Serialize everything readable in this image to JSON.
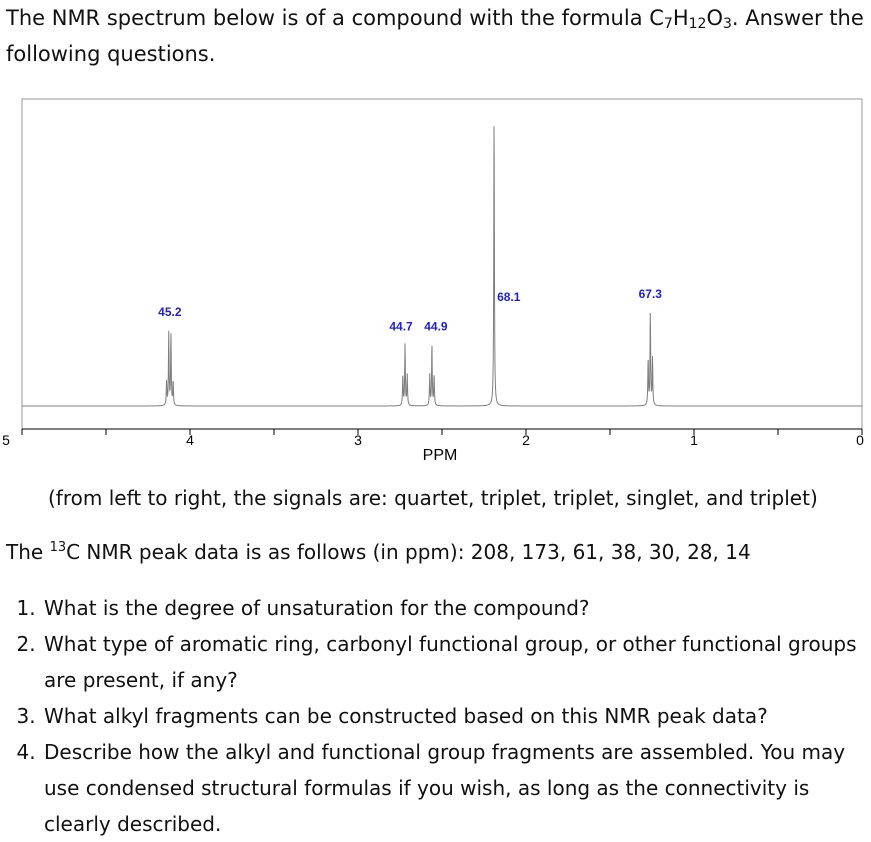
{
  "intro": {
    "text_before_formula": "The NMR spectrum below is of a compound with the formula ",
    "formula": [
      {
        "t": "C"
      },
      {
        "t": "7",
        "sub": true
      },
      {
        "t": "H"
      },
      {
        "t": "12",
        "sub": true
      },
      {
        "t": "O"
      },
      {
        "t": "3",
        "sub": true
      }
    ],
    "text_after_formula": ". Answer the following questions."
  },
  "chart_data": {
    "type": "line",
    "xlabel": "PPM",
    "xlim": [
      5,
      0
    ],
    "x_reversed": true,
    "ticks": [
      5,
      4,
      3,
      2,
      1,
      0
    ],
    "tick_labels": [
      "5",
      "4",
      "3",
      "2",
      "1",
      "0"
    ],
    "grid": false,
    "peaks": [
      {
        "center": 4.12,
        "label": "45.2",
        "height": 0.26,
        "multiplicity": "quartet"
      },
      {
        "center": 2.72,
        "label": "44.7",
        "height": 0.21,
        "multiplicity": "triplet"
      },
      {
        "center": 2.56,
        "label": "44.9",
        "height": 0.21,
        "multiplicity": "triplet"
      },
      {
        "center": 2.19,
        "label": "68.1",
        "height": 1.0,
        "multiplicity": "singlet"
      },
      {
        "center": 1.26,
        "label": "67.3",
        "height": 0.32,
        "multiplicity": "triplet"
      }
    ],
    "colors": {
      "trace": "#7f7f7f",
      "labels": "#1f1fcf",
      "axis": "#000000"
    }
  },
  "signals_note": "(from left to right, the signals are: quartet, triplet, triplet, singlet, and triplet)",
  "c13": {
    "prefix": "The ",
    "isotope_sup": "13",
    "text": "C NMR peak data is as follows (in ppm): 208, 173, 61, 38, 30, 28, 14"
  },
  "questions": [
    "What is the degree of unsaturation for the compound?",
    "What type of aromatic ring, carbonyl functional group, or other functional groups are present, if any?",
    "What alkyl fragments can be constructed based on this NMR peak data?",
    "Describe how the alkyl and functional group fragments are assembled.  You may use condensed structural formulas if you wish, as long as the connectivity is clearly described."
  ]
}
